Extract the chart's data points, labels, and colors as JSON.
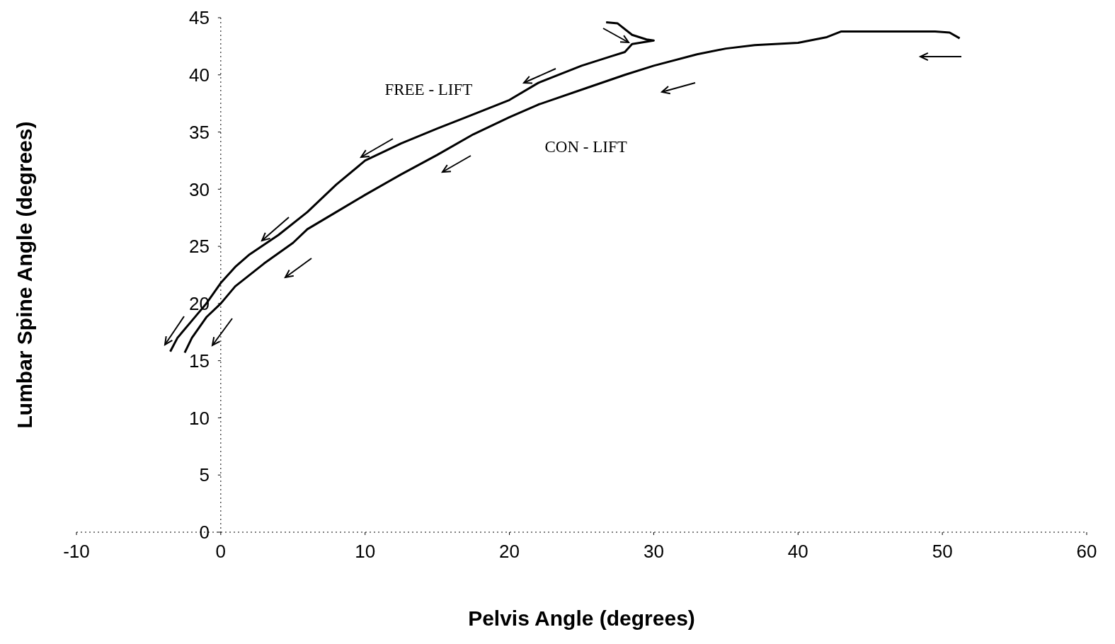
{
  "chart_data": {
    "type": "line",
    "xlabel": "Pelvis Angle (degrees)",
    "ylabel": "Lumbar Spine Angle (degrees)",
    "xlim": [
      -10,
      60
    ],
    "xticks": [
      -10,
      0,
      10,
      20,
      30,
      40,
      50,
      60
    ],
    "ylim": [
      0,
      45
    ],
    "yticks": [
      0,
      5,
      10,
      15,
      20,
      25,
      30,
      35,
      40,
      45
    ],
    "marker": "none",
    "line_style": "solid",
    "series": [
      {
        "name": "FREE - LIFT",
        "color": "#000000",
        "x": [
          26.7,
          27.5,
          28.5,
          29.5,
          30,
          28.5,
          28,
          27,
          25,
          22,
          20,
          17,
          15,
          12.5,
          11.5,
          10,
          8,
          6,
          4,
          2,
          1,
          0,
          -1,
          -2,
          -3,
          -3.5
        ],
        "values": [
          44.6,
          44.5,
          43.5,
          43.1,
          43,
          42.7,
          42,
          41.6,
          40.8,
          39.3,
          37.8,
          36.3,
          35.3,
          34,
          33.4,
          32.5,
          30.4,
          28,
          26,
          24.3,
          23.2,
          21.8,
          20,
          18.5,
          17,
          15.8
        ]
      },
      {
        "name": "CON - LIFT",
        "color": "#000000",
        "x": [
          51.2,
          50.5,
          49.5,
          43,
          42,
          40,
          37,
          35,
          33,
          30,
          28,
          25,
          22,
          20,
          17.5,
          15,
          12.5,
          10,
          8,
          6,
          5,
          3,
          1,
          0,
          -1,
          -2,
          -2.5
        ],
        "values": [
          43.2,
          43.7,
          43.8,
          43.8,
          43.3,
          42.8,
          42.6,
          42.3,
          41.8,
          40.8,
          40,
          38.7,
          37.4,
          36.3,
          34.8,
          33,
          31.3,
          29.5,
          28,
          26.5,
          25.3,
          23.5,
          21.5,
          20,
          18.8,
          17,
          15.7
        ]
      }
    ]
  }
}
